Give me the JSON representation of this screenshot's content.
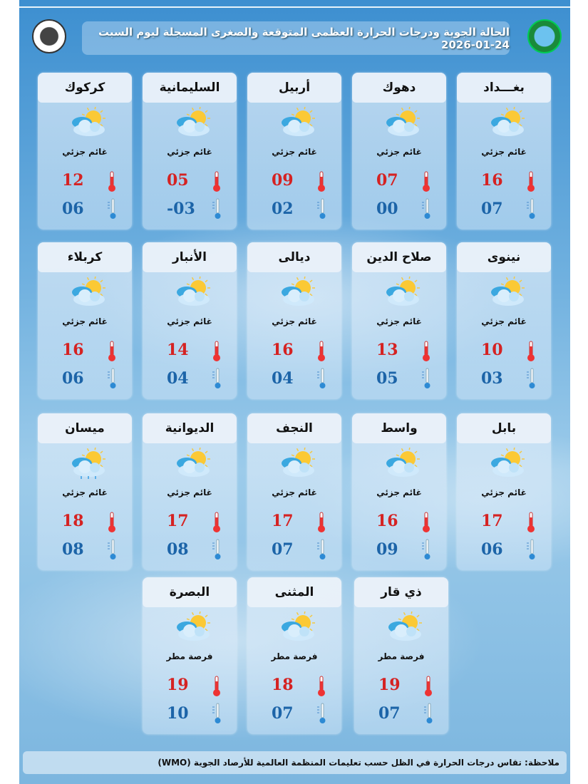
{
  "header": {
    "title": "الحالة الجوية ودرجات الحرارة العظمى المتوقعة والصغرى المسجلة ليوم السبت 24-01-2026"
  },
  "colors": {
    "max": "#d52222",
    "min": "#1c64a8"
  },
  "cities": [
    {
      "name": "بغـــداد",
      "condition": "غائم جزئي",
      "max": "16",
      "min": "07",
      "icon": "partly-cloudy-icon"
    },
    {
      "name": "دهوك",
      "condition": "غائم جزئي",
      "max": "07",
      "min": "00",
      "icon": "partly-cloudy-icon"
    },
    {
      "name": "أربيل",
      "condition": "غائم جزئي",
      "max": "09",
      "min": "02",
      "icon": "partly-cloudy-icon"
    },
    {
      "name": "السليمانية",
      "condition": "غائم جزئي",
      "max": "05",
      "min": "-03",
      "icon": "partly-cloudy-icon"
    },
    {
      "name": "كركوك",
      "condition": "غائم جزئي",
      "max": "12",
      "min": "06",
      "icon": "partly-cloudy-icon"
    },
    {
      "name": "نينوى",
      "condition": "غائم جزئي",
      "max": "10",
      "min": "03",
      "icon": "partly-cloudy-icon"
    },
    {
      "name": "صلاح الدين",
      "condition": "غائم جزئي",
      "max": "13",
      "min": "05",
      "icon": "partly-cloudy-icon"
    },
    {
      "name": "ديالى",
      "condition": "غائم جزئي",
      "max": "16",
      "min": "04",
      "icon": "partly-cloudy-icon"
    },
    {
      "name": "الأنبار",
      "condition": "غائم جزئي",
      "max": "14",
      "min": "04",
      "icon": "partly-cloudy-icon"
    },
    {
      "name": "كربلاء",
      "condition": "غائم جزئي",
      "max": "16",
      "min": "06",
      "icon": "partly-cloudy-icon"
    },
    {
      "name": "بابل",
      "condition": "غائم جزئي",
      "max": "17",
      "min": "06",
      "icon": "partly-cloudy-icon"
    },
    {
      "name": "واسط",
      "condition": "غائم جزئي",
      "max": "16",
      "min": "09",
      "icon": "partly-cloudy-icon"
    },
    {
      "name": "النجف",
      "condition": "غائم جزئي",
      "max": "17",
      "min": "07",
      "icon": "partly-cloudy-icon"
    },
    {
      "name": "الديوانية",
      "condition": "غائم جزئي",
      "max": "17",
      "min": "08",
      "icon": "partly-cloudy-icon"
    },
    {
      "name": "ميسان",
      "condition": "غائم جزئي",
      "max": "18",
      "min": "08",
      "icon": "partly-cloudy-rain-icon"
    },
    {
      "name": "ذي قار",
      "condition": "فرصة مطر",
      "max": "19",
      "min": "07",
      "icon": "partly-cloudy-icon"
    },
    {
      "name": "المثنى",
      "condition": "فرصة مطر",
      "max": "18",
      "min": "07",
      "icon": "partly-cloudy-icon"
    },
    {
      "name": "البصرة",
      "condition": "فرصة مطر",
      "max": "19",
      "min": "10",
      "icon": "partly-cloudy-icon"
    }
  ],
  "note": "ملاحظة: تقاس درجات الحرارة في الظل حسب تعليمات المنظمة العالمية للأرصاد الجوية (WMO)"
}
